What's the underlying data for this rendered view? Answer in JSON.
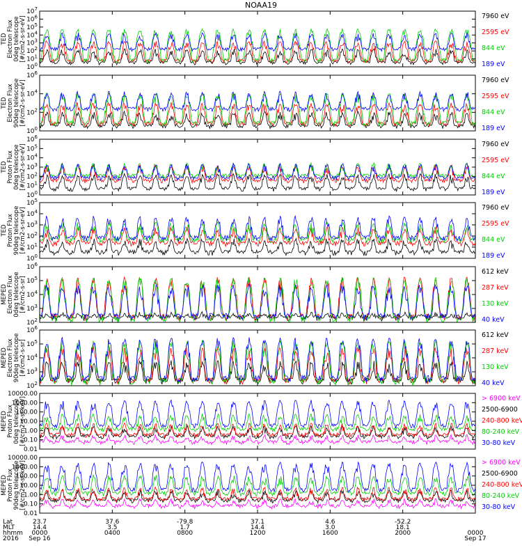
{
  "title": "NOAA19",
  "colors": {
    "black": "#000000",
    "red": "#ff0000",
    "green": "#00d000",
    "blue": "#0000ff",
    "magenta": "#ff00ff"
  },
  "chart_data": [
    {
      "type": "line",
      "ylabel": [
        "TED",
        "Electron Flux",
        "0deg telescope",
        "[#/cm2-s-sr-eV]"
      ],
      "log": true,
      "ylim": [
        1,
        10000000
      ],
      "yticks": [
        {
          "v": 1,
          "l": "10",
          "e": "0"
        },
        {
          "v": 10,
          "l": "10",
          "e": "1"
        },
        {
          "v": 100,
          "l": "10",
          "e": "2"
        },
        {
          "v": 1000,
          "l": "10",
          "e": "3"
        },
        {
          "v": 10000,
          "l": "10",
          "e": "4"
        },
        {
          "v": 100000,
          "l": "10",
          "e": "5"
        },
        {
          "v": 1000000,
          "l": "10",
          "e": "6"
        },
        {
          "v": 10000000,
          "l": "10",
          "e": "7"
        }
      ],
      "legend": [
        {
          "label": "7960 eV",
          "color": "#000000"
        },
        {
          "label": "2595 eV",
          "color": "#ff0000"
        },
        {
          "label": "844 eV",
          "color": "#00d000"
        },
        {
          "label": "189 eV",
          "color": "#0000ff"
        }
      ],
      "series": [
        {
          "name": "7960 eV",
          "base": 3,
          "peak": 300,
          "color": "#000000"
        },
        {
          "name": "2595 eV",
          "base": 5,
          "peak": 3000,
          "color": "#ff0000"
        },
        {
          "name": "844 eV",
          "base": 6,
          "peak": 100000,
          "color": "#00d000"
        },
        {
          "name": "189 eV",
          "base": 150,
          "peak": 30000,
          "color": "#0000ff"
        }
      ]
    },
    {
      "type": "line",
      "ylabel": [
        "TED",
        "Electron Flux",
        "90deg telescope",
        "[#/cm2-s-sr-eV]"
      ],
      "log": true,
      "ylim": [
        1,
        1000000
      ],
      "yticks": [
        {
          "v": 1,
          "l": "10",
          "e": "0"
        },
        {
          "v": 100,
          "l": "10",
          "e": "2"
        },
        {
          "v": 10000,
          "l": "10",
          "e": "4"
        },
        {
          "v": 1000000,
          "l": "10",
          "e": "6"
        }
      ],
      "legend": [
        {
          "label": "7960 eV",
          "color": "#000000"
        },
        {
          "label": "2595 eV",
          "color": "#ff0000"
        },
        {
          "label": "844 eV",
          "color": "#00d000"
        },
        {
          "label": "189 eV",
          "color": "#0000ff"
        }
      ],
      "series": [
        {
          "name": "7960 eV",
          "base": 3,
          "peak": 200,
          "color": "#000000"
        },
        {
          "name": "2595 eV",
          "base": 5,
          "peak": 2000,
          "color": "#ff0000"
        },
        {
          "name": "844 eV",
          "base": 6,
          "peak": 20000,
          "color": "#00d000"
        },
        {
          "name": "189 eV",
          "base": 200,
          "peak": 30000,
          "color": "#0000ff"
        }
      ]
    },
    {
      "type": "line",
      "ylabel": [
        "TED",
        "Proton Flux",
        "0deg telescope",
        "[#/cm2-s-sr-eV]"
      ],
      "log": true,
      "ylim": [
        1,
        1000000
      ],
      "yticks": [
        {
          "v": 1,
          "l": "10",
          "e": "0"
        },
        {
          "v": 10,
          "l": "10",
          "e": "1"
        },
        {
          "v": 100,
          "l": "10",
          "e": "2"
        },
        {
          "v": 1000,
          "l": "10",
          "e": "3"
        },
        {
          "v": 10000,
          "l": "10",
          "e": "4"
        },
        {
          "v": 100000,
          "l": "10",
          "e": "5"
        },
        {
          "v": 1000000,
          "l": "10",
          "e": "6"
        }
      ],
      "legend": [
        {
          "label": "7960 eV",
          "color": "#000000"
        },
        {
          "label": "2595 eV",
          "color": "#ff0000"
        },
        {
          "label": "844 eV",
          "color": "#00d000"
        },
        {
          "label": "189 eV",
          "color": "#0000ff"
        }
      ],
      "series": [
        {
          "name": "7960 eV",
          "base": 4,
          "peak": 300,
          "color": "#000000"
        },
        {
          "name": "2595 eV",
          "base": 30,
          "peak": 3000,
          "color": "#ff0000"
        },
        {
          "name": "844 eV",
          "base": 100,
          "peak": 5000,
          "color": "#00d000"
        },
        {
          "name": "189 eV",
          "base": 60,
          "peak": 4000,
          "color": "#0000ff"
        }
      ]
    },
    {
      "type": "line",
      "ylabel": [
        "TED",
        "Proton Flux",
        "90deg telescope",
        "[#/cm2-s-sr-eV]"
      ],
      "log": true,
      "ylim": [
        1,
        100000
      ],
      "yticks": [
        {
          "v": 1,
          "l": "10",
          "e": "0"
        },
        {
          "v": 10,
          "l": "10",
          "e": "1"
        },
        {
          "v": 100,
          "l": "10",
          "e": "2"
        },
        {
          "v": 1000,
          "l": "10",
          "e": "3"
        },
        {
          "v": 10000,
          "l": "10",
          "e": "4"
        },
        {
          "v": 100000,
          "l": "10",
          "e": "5"
        }
      ],
      "legend": [
        {
          "label": "7960 eV",
          "color": "#000000"
        },
        {
          "label": "2595 eV",
          "color": "#ff0000"
        },
        {
          "label": "844 eV",
          "color": "#00d000"
        },
        {
          "label": "189 eV",
          "color": "#0000ff"
        }
      ],
      "series": [
        {
          "name": "7960 eV",
          "base": 3,
          "peak": 100,
          "color": "#000000"
        },
        {
          "name": "2595 eV",
          "base": 20,
          "peak": 1000,
          "color": "#ff0000"
        },
        {
          "name": "844 eV",
          "base": 40,
          "peak": 3000,
          "color": "#00d000"
        },
        {
          "name": "189 eV",
          "base": 60,
          "peak": 10000,
          "color": "#0000ff"
        }
      ]
    },
    {
      "type": "line",
      "ylabel": [
        "MEPED",
        "Electron Flux",
        "0deg telescope",
        "[#/cm2-s-sr]"
      ],
      "log": true,
      "ylim": [
        100,
        1000000
      ],
      "yticks": [
        {
          "v": 100,
          "l": "10",
          "e": "2"
        },
        {
          "v": 1000,
          "l": "10",
          "e": "3"
        },
        {
          "v": 10000,
          "l": "10",
          "e": "4"
        },
        {
          "v": 100000,
          "l": "10",
          "e": "5"
        },
        {
          "v": 1000000,
          "l": "10",
          "e": "6"
        }
      ],
      "legend": [
        {
          "label": "612 keV",
          "color": "#000000"
        },
        {
          "label": "287 keV",
          "color": "#ff0000"
        },
        {
          "label": "130 keV",
          "color": "#00d000"
        },
        {
          "label": "40 keV",
          "color": "#0000ff"
        }
      ],
      "series": [
        {
          "name": "612 keV",
          "base": 200,
          "peak": 600,
          "color": "#000000"
        },
        {
          "name": "287 keV",
          "base": 220,
          "peak": 300000,
          "color": "#ff0000"
        },
        {
          "name": "130 keV",
          "base": 150,
          "peak": 300000,
          "color": "#00d000"
        },
        {
          "name": "40 keV",
          "base": 250,
          "peak": 100000,
          "color": "#0000ff"
        }
      ]
    },
    {
      "type": "line",
      "ylabel": [
        "MEPED",
        "Electron Flux",
        "90deg telescope",
        "[#/cm2-s-sr]"
      ],
      "log": true,
      "ylim": [
        100,
        1000000
      ],
      "yticks": [
        {
          "v": 100,
          "l": "10",
          "e": "2"
        },
        {
          "v": 1000,
          "l": "10",
          "e": "3"
        },
        {
          "v": 10000,
          "l": "10",
          "e": "4"
        },
        {
          "v": 100000,
          "l": "10",
          "e": "5"
        },
        {
          "v": 1000000,
          "l": "10",
          "e": "6"
        }
      ],
      "legend": [
        {
          "label": "612 keV",
          "color": "#000000"
        },
        {
          "label": "287 keV",
          "color": "#ff0000"
        },
        {
          "label": "130 keV",
          "color": "#00d000"
        },
        {
          "label": "40 keV",
          "color": "#0000ff"
        }
      ],
      "series": [
        {
          "name": "612 keV",
          "base": 200,
          "peak": 10000,
          "color": "#000000"
        },
        {
          "name": "287 keV",
          "base": 200,
          "peak": 100000,
          "color": "#ff0000"
        },
        {
          "name": "130 keV",
          "base": 180,
          "peak": 300000,
          "color": "#00d000"
        },
        {
          "name": "40 keV",
          "base": 300,
          "peak": 500000,
          "color": "#0000ff"
        }
      ]
    },
    {
      "type": "line",
      "ylabel": [
        "MEPED",
        "Proton Flux",
        "0deg telescope",
        "[#/cm2-s-sr-keV]"
      ],
      "log": true,
      "ylim": [
        0.01,
        10000
      ],
      "yticks": [
        {
          "v": 0.01,
          "l": "0.01"
        },
        {
          "v": 0.1,
          "l": "0.10"
        },
        {
          "v": 1,
          "l": "1.00"
        },
        {
          "v": 10,
          "l": "10.00"
        },
        {
          "v": 100,
          "l": "100.00"
        },
        {
          "v": 1000,
          "l": "1000.00"
        },
        {
          "v": 10000,
          "l": "10000.00"
        }
      ],
      "legend": [
        {
          "label": "> 6900 keV",
          "color": "#ff00ff"
        },
        {
          "label": "2500-6900",
          "color": "#000000"
        },
        {
          "label": "240-800 keV",
          "color": "#ff0000"
        },
        {
          "label": "80-240 keV",
          "color": "#00d000"
        },
        {
          "label": "30-80 keV",
          "color": "#0000ff"
        }
      ],
      "series": [
        {
          "name": "> 6900 keV",
          "base": 0.05,
          "peak": 0.5,
          "color": "#ff00ff"
        },
        {
          "name": "2500-6900",
          "base": 0.2,
          "peak": 5,
          "color": "#000000"
        },
        {
          "name": "240-800 keV",
          "base": 0.3,
          "peak": 10,
          "color": "#ff0000"
        },
        {
          "name": "80-240 keV",
          "base": 1.2,
          "peak": 100,
          "color": "#00d000"
        },
        {
          "name": "30-80 keV",
          "base": 3,
          "peak": 3000,
          "color": "#0000ff"
        }
      ]
    },
    {
      "type": "line",
      "ylabel": [
        "MEPED",
        "Proton Flux",
        "90deg telescope",
        "[#/cm2-s-sr-keV]"
      ],
      "log": true,
      "ylim": [
        0.01,
        10000
      ],
      "yticks": [
        {
          "v": 0.01,
          "l": "0.01"
        },
        {
          "v": 0.1,
          "l": "0.10"
        },
        {
          "v": 1,
          "l": "1.00"
        },
        {
          "v": 10,
          "l": "10.00"
        },
        {
          "v": 100,
          "l": "100.00"
        },
        {
          "v": 1000,
          "l": "1000.00"
        },
        {
          "v": 10000,
          "l": "10000.00"
        }
      ],
      "legend": [
        {
          "label": "> 6900 keV",
          "color": "#ff00ff"
        },
        {
          "label": "2500-6900",
          "color": "#000000"
        },
        {
          "label": "240-800 keV",
          "color": "#ff0000"
        },
        {
          "label": "80-240 keV",
          "color": "#00d000"
        },
        {
          "label": "30-80 keV",
          "color": "#0000ff"
        }
      ],
      "series": [
        {
          "name": "> 6900 keV",
          "base": 0.05,
          "peak": 0.5,
          "color": "#ff00ff"
        },
        {
          "name": "2500-6900",
          "base": 0.2,
          "peak": 5,
          "color": "#000000"
        },
        {
          "name": "240-800 keV",
          "base": 0.3,
          "peak": 10,
          "color": "#ff0000"
        },
        {
          "name": "80-240 keV",
          "base": 1.2,
          "peak": 200,
          "color": "#00d000"
        },
        {
          "name": "30-80 keV",
          "base": 3,
          "peak": 5000,
          "color": "#0000ff"
        }
      ]
    }
  ],
  "xaxis": {
    "row_labels": [
      "Lat",
      "MLT",
      "hhmm",
      "2016"
    ],
    "ticks": [
      {
        "lat": "23.7",
        "mlt": "14.4",
        "hhmm": "0000",
        "date": "Sep 16"
      },
      {
        "lat": "37.6",
        "mlt": "3.5",
        "hhmm": "0400",
        "date": ""
      },
      {
        "lat": "-79.8",
        "mlt": "1.7",
        "hhmm": "0800",
        "date": ""
      },
      {
        "lat": "37.1",
        "mlt": "14.4",
        "hhmm": "1200",
        "date": ""
      },
      {
        "lat": "4.6",
        "mlt": "3.0",
        "hhmm": "1600",
        "date": ""
      },
      {
        "lat": "-52.2",
        "mlt": "18.1",
        "hhmm": "2000",
        "date": ""
      },
      {
        "lat": "",
        "mlt": "",
        "hhmm": "0000",
        "date": "Sep 17"
      }
    ]
  }
}
